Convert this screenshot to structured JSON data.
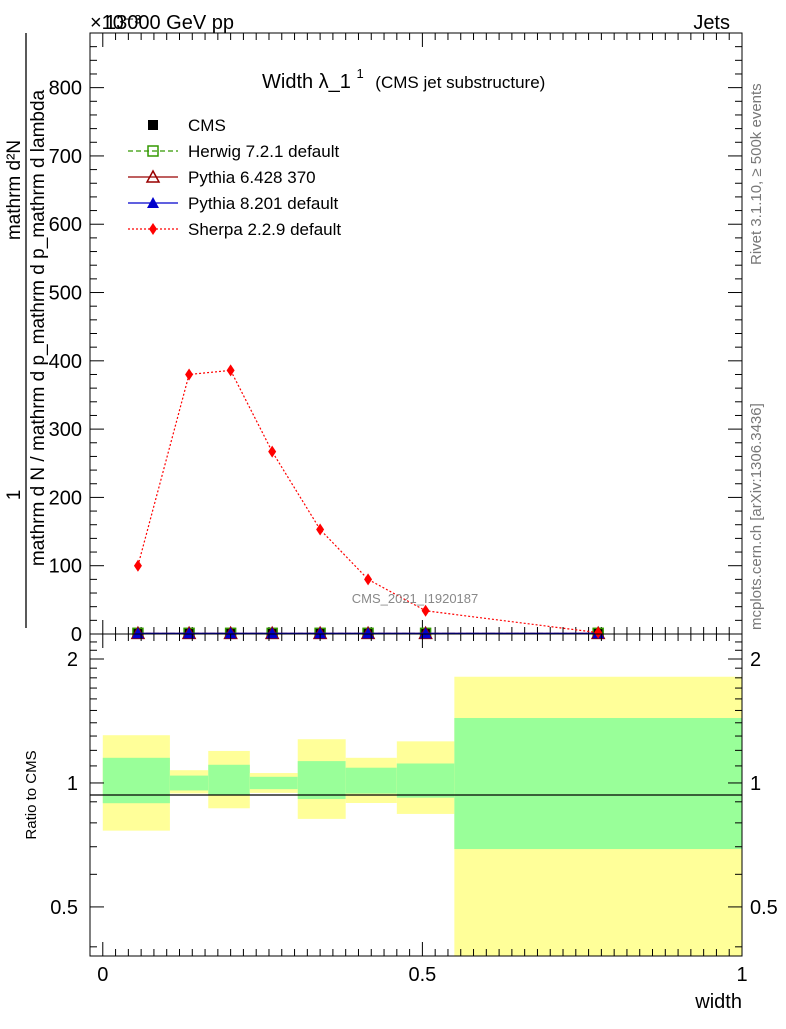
{
  "header": {
    "energy_label": "13000 GeV pp",
    "category_label": "Jets",
    "exponent_label": "×10⁻³"
  },
  "side_text": {
    "rivet": "Rivet 3.1.10, ≥ 500k events",
    "mcplots": "mcplots.cern.ch [arXiv:1306.3436]"
  },
  "chart_data": [
    {
      "type": "line",
      "title_main": "Width λ_1",
      "title_sup": "1",
      "title_sub": "(CMS jet substructure)",
      "ylabel_numerator": "1",
      "ylabel_denominator": "mathrm d N / mathrm d p_mathrm d p_mathrm d lambda",
      "ylabel_top": "mathrm d²N",
      "analysis_id": "CMS_2021_I1920187",
      "ylim": [
        0,
        880
      ],
      "xlim": [
        -0.02,
        1.0
      ],
      "y_ticks": [
        0,
        100,
        200,
        300,
        400,
        500,
        600,
        700,
        800
      ],
      "x": [
        0.055,
        0.135,
        0.2,
        0.265,
        0.34,
        0.415,
        0.505,
        0.775
      ],
      "series": [
        {
          "name": "CMS",
          "color": "#000000",
          "marker": "square-filled",
          "line": "none",
          "values": [
            1,
            1,
            1,
            1,
            1,
            1,
            1,
            1
          ]
        },
        {
          "name": "Herwig 7.2.1 default",
          "color": "#339900",
          "marker": "square-open",
          "line": "dashed",
          "values": [
            1,
            1,
            1,
            1,
            1,
            1,
            1,
            1
          ]
        },
        {
          "name": "Pythia 6.428 370",
          "color": "#990000",
          "marker": "triangle-open",
          "line": "solid",
          "values": [
            1,
            1,
            1,
            1,
            1,
            1,
            1,
            1
          ]
        },
        {
          "name": "Pythia 8.201 default",
          "color": "#0000cc",
          "marker": "triangle-filled",
          "line": "solid",
          "values": [
            1,
            1,
            1,
            1,
            1,
            1,
            1,
            1
          ]
        },
        {
          "name": "Sherpa 2.2.9 default",
          "color": "#ff0000",
          "marker": "diamond-filled",
          "line": "dotted",
          "values": [
            100,
            380,
            386,
            267,
            153,
            80,
            34,
            2
          ]
        }
      ],
      "grid": false
    },
    {
      "type": "area",
      "ylabel": "Ratio to CMS",
      "xlabel": "width",
      "ylim": [
        0.38,
        2.3
      ],
      "y_scale": "log",
      "y_ticks": [
        0.5,
        1,
        2
      ],
      "x_ticks": [
        0,
        0.5,
        1
      ],
      "x_tick_labels": [
        "0",
        "0.5",
        "1"
      ],
      "bins": [
        {
          "lo": 0.0,
          "hi": 0.105,
          "stat": [
            0.893,
            1.151
          ],
          "total": [
            0.766,
            1.306
          ]
        },
        {
          "lo": 0.105,
          "hi": 0.165,
          "stat": [
            0.959,
            1.042
          ],
          "total": [
            0.943,
            1.074
          ]
        },
        {
          "lo": 0.165,
          "hi": 0.23,
          "stat": [
            0.935,
            1.107
          ],
          "total": [
            0.868,
            1.196
          ]
        },
        {
          "lo": 0.23,
          "hi": 0.305,
          "stat": [
            0.966,
            1.035
          ],
          "total": [
            0.946,
            1.057
          ]
        },
        {
          "lo": 0.305,
          "hi": 0.38,
          "stat": [
            0.914,
            1.13
          ],
          "total": [
            0.818,
            1.277
          ]
        },
        {
          "lo": 0.38,
          "hi": 0.46,
          "stat": [
            0.942,
            1.089
          ],
          "total": [
            0.894,
            1.151
          ]
        },
        {
          "lo": 0.46,
          "hi": 0.55,
          "stat": [
            0.921,
            1.115
          ],
          "total": [
            0.841,
            1.262
          ]
        },
        {
          "lo": 0.55,
          "hi": 1.0,
          "stat": [
            0.691,
            1.438
          ],
          "total": [
            0.38,
            1.811
          ]
        }
      ],
      "stat_color": "#99ff99",
      "total_color": "#ffff99"
    }
  ]
}
